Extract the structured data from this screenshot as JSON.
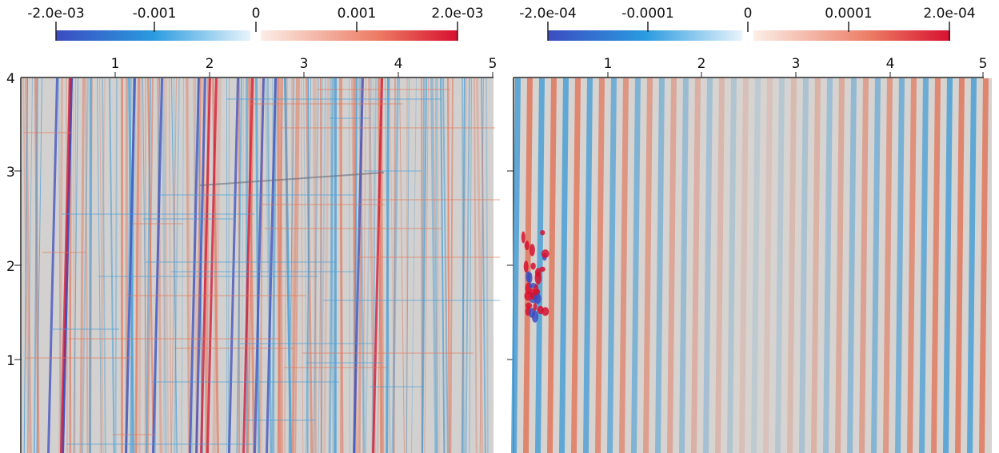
{
  "panels": [
    {
      "id": "left",
      "colorbar": {
        "neg_ticks": [
          "-2.0e-03",
          "-0.001"
        ],
        "zero": "0",
        "pos_ticks": [
          "0.001",
          "2.0e-03"
        ]
      },
      "x_ticks": [
        "1",
        "2",
        "3",
        "4",
        "5"
      ],
      "y_ticks": [
        "4",
        "3",
        "2",
        "1"
      ]
    },
    {
      "id": "right",
      "colorbar": {
        "neg_ticks": [
          "-2.0e-04",
          "-0.0001"
        ],
        "zero": "0",
        "pos_ticks": [
          "0.0001",
          "2.0e-04"
        ]
      },
      "x_ticks": [
        "1",
        "2",
        "3",
        "4",
        "5"
      ],
      "y_ticks": []
    }
  ],
  "colors": {
    "neg_dark": "#3b4cc0",
    "neg_light": "#e8f4fb",
    "pos_light": "#fbeee6",
    "pos_dark": "#d7102f",
    "field_bg": "#d4d2d0",
    "stripe_blue": "#4a9fd6",
    "stripe_red": "#e2775c"
  }
}
